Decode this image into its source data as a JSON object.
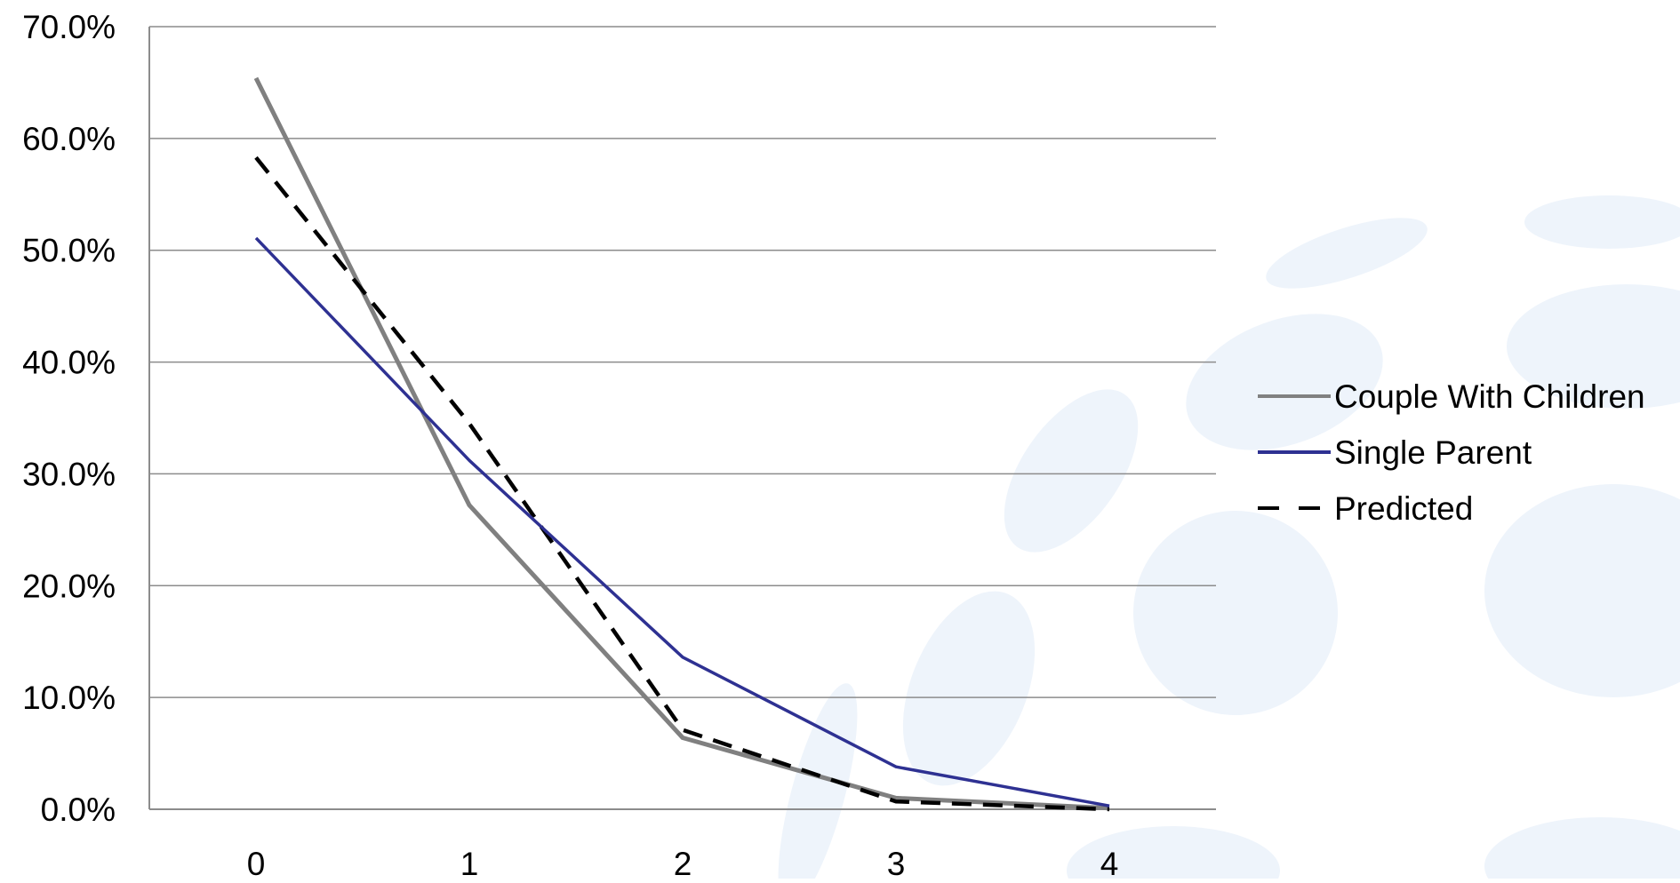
{
  "chart_data": {
    "type": "line",
    "title": "",
    "xlabel": "",
    "ylabel": "",
    "categories": [
      "0",
      "1",
      "2",
      "3",
      "4"
    ],
    "ylim": [
      0,
      0.7
    ],
    "y_ticks": [
      "0.0%",
      "10.0%",
      "20.0%",
      "30.0%",
      "40.0%",
      "50.0%",
      "60.0%",
      "70.0%"
    ],
    "grid": true,
    "legend_position": "right",
    "series": [
      {
        "name": "Couple With Children",
        "values": [
          0.654,
          0.272,
          0.064,
          0.01,
          0.001
        ],
        "color": "#808080",
        "dash": "solid"
      },
      {
        "name": "Single Parent",
        "values": [
          0.511,
          0.312,
          0.136,
          0.038,
          0.003
        ],
        "color": "#2e3192",
        "dash": "solid"
      },
      {
        "name": "Predicted",
        "values": [
          0.583,
          0.345,
          0.071,
          0.007,
          0.0
        ],
        "color": "#000000",
        "dash": "dashed"
      }
    ]
  }
}
